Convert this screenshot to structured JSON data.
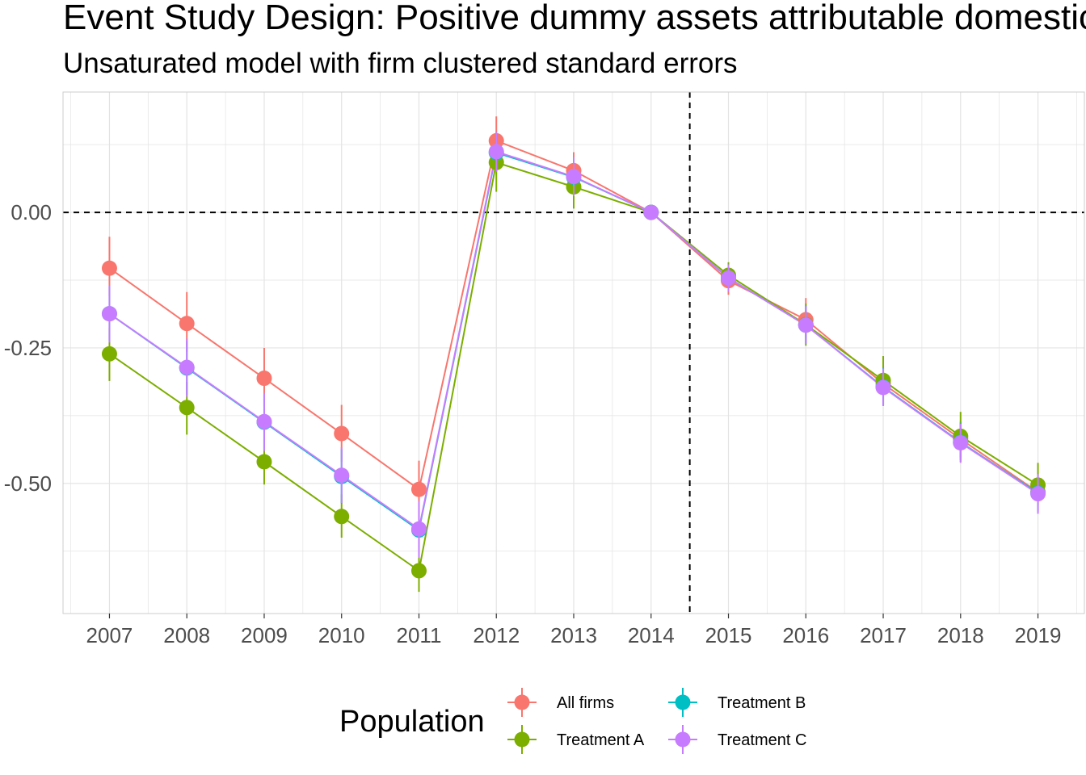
{
  "chart_data": {
    "type": "line",
    "title": "Event Study Design: Positive dummy assets attributable domestic",
    "subtitle": "Unsaturated model with firm clustered standard errors",
    "xlabel": "",
    "ylabel": "",
    "x": [
      2007,
      2008,
      2009,
      2010,
      2011,
      2012,
      2013,
      2014,
      2015,
      2016,
      2017,
      2018,
      2019
    ],
    "xlim": [
      2006.4,
      2019.6
    ],
    "ylim": [
      -0.74,
      0.222
    ],
    "y_ticks": [
      0.0,
      -0.25,
      -0.5
    ],
    "y_tick_labels": [
      "0.00",
      "-0.25",
      "-0.50"
    ],
    "grid": true,
    "reference_lines": {
      "horizontal": 0.0,
      "vertical": 2014.5
    },
    "legend": {
      "title": "Population",
      "position": "bottom"
    },
    "series": [
      {
        "name": "All firms",
        "color": "#F8766D",
        "values": [
          -0.103,
          -0.205,
          -0.306,
          -0.408,
          -0.511,
          0.132,
          0.077,
          0.0,
          -0.126,
          -0.198,
          -0.316,
          -0.418,
          -0.516
        ],
        "lower": [
          -0.155,
          -0.257,
          -0.358,
          -0.46,
          -0.567,
          0.1,
          0.045,
          0.0,
          -0.152,
          -0.23,
          -0.35,
          -0.452,
          -0.552
        ],
        "upper": [
          -0.045,
          -0.147,
          -0.25,
          -0.355,
          -0.458,
          0.177,
          0.111,
          0.0,
          -0.101,
          -0.158,
          -0.282,
          -0.385,
          -0.481
        ]
      },
      {
        "name": "Treatment A",
        "color": "#7CAE00",
        "values": [
          -0.261,
          -0.36,
          -0.46,
          -0.561,
          -0.661,
          0.092,
          0.047,
          0.0,
          -0.116,
          -0.207,
          -0.31,
          -0.413,
          -0.503
        ],
        "lower": [
          -0.311,
          -0.41,
          -0.502,
          -0.6,
          -0.7,
          0.038,
          0.007,
          0.0,
          -0.142,
          -0.246,
          -0.355,
          -0.457,
          -0.54
        ],
        "upper": [
          -0.213,
          -0.313,
          -0.42,
          -0.52,
          -0.62,
          0.117,
          0.087,
          0.0,
          -0.092,
          -0.168,
          -0.265,
          -0.368,
          -0.462
        ]
      },
      {
        "name": "Treatment B",
        "color": "#00BFC4",
        "values": [
          -0.187,
          -0.287,
          -0.387,
          -0.487,
          -0.586,
          0.11,
          0.065,
          0.0,
          -0.121,
          -0.208,
          -0.322,
          -0.424,
          -0.518
        ],
        "lower": [
          -0.237,
          -0.337,
          -0.437,
          -0.537,
          -0.636,
          0.075,
          0.03,
          0.0,
          -0.146,
          -0.243,
          -0.357,
          -0.46,
          -0.552
        ],
        "upper": [
          -0.137,
          -0.237,
          -0.337,
          -0.437,
          -0.536,
          0.145,
          0.1,
          0.0,
          -0.096,
          -0.173,
          -0.287,
          -0.388,
          -0.484
        ]
      },
      {
        "name": "Treatment C",
        "color": "#C77CFF",
        "values": [
          -0.187,
          -0.286,
          -0.386,
          -0.485,
          -0.584,
          0.112,
          0.066,
          0.0,
          -0.121,
          -0.208,
          -0.323,
          -0.425,
          -0.519
        ],
        "lower": [
          -0.24,
          -0.34,
          -0.44,
          -0.536,
          -0.637,
          0.075,
          0.03,
          0.0,
          -0.146,
          -0.243,
          -0.357,
          -0.462,
          -0.556
        ],
        "upper": [
          -0.135,
          -0.233,
          -0.333,
          -0.433,
          -0.532,
          0.148,
          0.102,
          0.0,
          -0.096,
          -0.173,
          -0.288,
          -0.39,
          -0.483
        ]
      }
    ]
  }
}
